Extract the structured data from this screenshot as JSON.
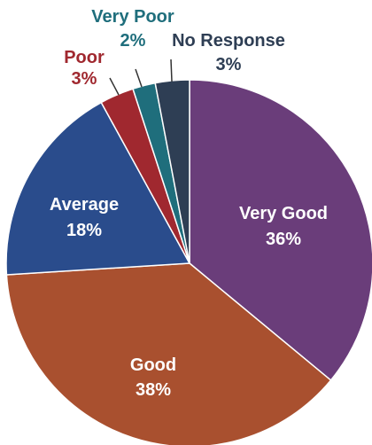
{
  "chart_data": {
    "type": "pie",
    "title": "",
    "start_angle_deg": 0,
    "direction": "clockwise",
    "slices": [
      {
        "label": "Very Good",
        "value": 36,
        "value_label": "36%",
        "color": "#6A3D7A",
        "text_color": "#FFFFFF"
      },
      {
        "label": "Good",
        "value": 38,
        "value_label": "38%",
        "color": "#A9502F",
        "text_color": "#FFFFFF"
      },
      {
        "label": "Average",
        "value": 18,
        "value_label": "18%",
        "color": "#2A4C8C",
        "text_color": "#FFFFFF"
      },
      {
        "label": "Poor",
        "value": 3,
        "value_label": "3%",
        "color": "#A0282F",
        "text_color": "#A0282F"
      },
      {
        "label": "Very Poor",
        "value": 2,
        "value_label": "2%",
        "color": "#1F6E7C",
        "text_color": "#1F6E7C"
      },
      {
        "label": "No Response",
        "value": 3,
        "value_label": "3%",
        "color": "#2E3E54",
        "text_color": "#2E3E54"
      }
    ]
  }
}
